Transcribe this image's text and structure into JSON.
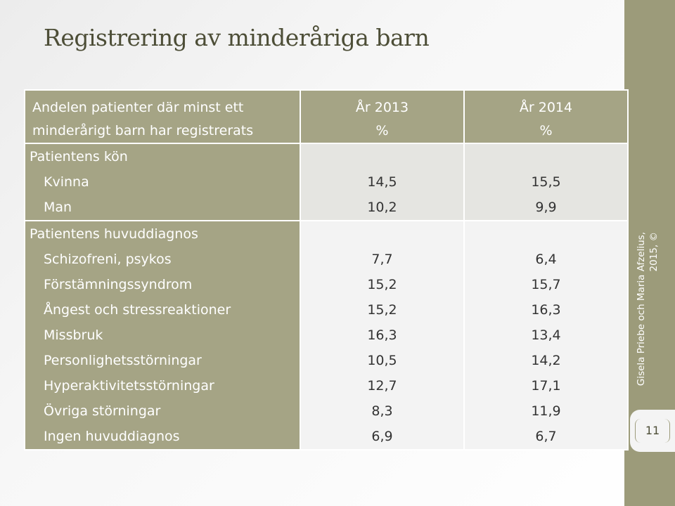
{
  "slide": {
    "title": "Registrering av minderåriga barn",
    "credit_line1": "Gisela Priebe och Maria Afzelius,",
    "credit_line2": "2015, ©",
    "page_number": "11"
  },
  "table": {
    "header": {
      "label_line1": "Andelen patienter där minst ett",
      "label_line2": "minderårigt barn har registrerats",
      "col1_line1": "År 2013",
      "col1_line2": "%",
      "col2_line1": "År 2014",
      "col2_line2": "%"
    },
    "groups": [
      {
        "title": "Patientens kön",
        "rows": [
          {
            "label": "Kvinna",
            "y2013": "14,5",
            "y2014": "15,5"
          },
          {
            "label": "Man",
            "y2013": "10,2",
            "y2014": "9,9"
          }
        ]
      },
      {
        "title": "Patientens huvuddiagnos",
        "rows": [
          {
            "label": "Schizofreni, psykos",
            "y2013": "7,7",
            "y2014": "6,4"
          },
          {
            "label": "Förstämningssyndrom",
            "y2013": "15,2",
            "y2014": "15,7"
          },
          {
            "label": "Ångest och stressreaktioner",
            "y2013": "15,2",
            "y2014": "16,3"
          },
          {
            "label": "Missbruk",
            "y2013": "16,3",
            "y2014": "13,4"
          },
          {
            "label": "Personlighetsstörningar",
            "y2013": "10,5",
            "y2014": "14,2"
          },
          {
            "label": "Hyperaktivitetsstörningar",
            "y2013": "12,7",
            "y2014": "17,1"
          },
          {
            "label": "Övriga störningar",
            "y2013": "8,3",
            "y2014": "11,9"
          },
          {
            "label": "Ingen huvuddiagnos",
            "y2013": "6,9",
            "y2014": "6,7"
          }
        ]
      }
    ]
  }
}
